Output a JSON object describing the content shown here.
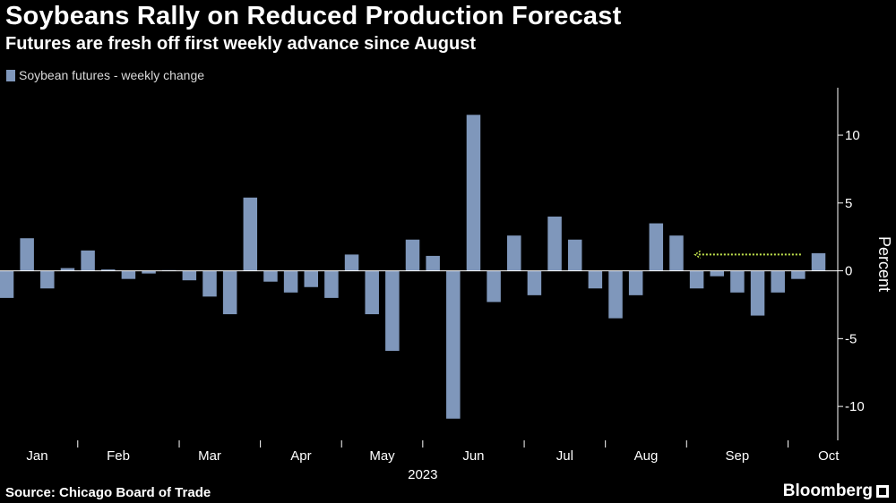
{
  "title": "Soybeans Rally on Reduced Production Forecast",
  "subtitle": "Futures are fresh off first weekly advance since August",
  "source": "Source: Chicago Board of Trade",
  "brand": "Bloomberg",
  "colors": {
    "bar": "#7f97bb",
    "arrow": "#c5e84f",
    "background": "#000000",
    "axis": "#ffffff"
  },
  "chart_data": {
    "type": "bar",
    "legend": [
      "Soybean futures - weekly change"
    ],
    "legend_position": "top-left",
    "ylabel": "Percent",
    "ylim": [
      -12.5,
      13.5
    ],
    "yticks": [
      10,
      5,
      0,
      -5,
      -10
    ],
    "ytick_labels": [
      "10",
      "5",
      "0",
      "-5",
      "-10"
    ],
    "grid": false,
    "year_label": "2023",
    "month_labels": [
      {
        "label": "Jan",
        "week": 1.5
      },
      {
        "label": "Feb",
        "week": 5.5
      },
      {
        "label": "Mar",
        "week": 10
      },
      {
        "label": "Apr",
        "week": 14.5
      },
      {
        "label": "May",
        "week": 18.5
      },
      {
        "label": "Jun",
        "week": 23
      },
      {
        "label": "Jul",
        "week": 27.5
      },
      {
        "label": "Aug",
        "week": 31.5
      },
      {
        "label": "Sep",
        "week": 36
      },
      {
        "label": "Oct",
        "week": 40.5
      }
    ],
    "series": [
      {
        "name": "Soybean futures - weekly change",
        "values": [
          -2.0,
          2.4,
          -1.3,
          0.2,
          1.5,
          0.1,
          -0.6,
          -0.2,
          0.05,
          -0.7,
          -1.9,
          -3.2,
          5.4,
          -0.8,
          -1.6,
          -1.2,
          -2.0,
          1.2,
          -3.2,
          -5.9,
          2.3,
          1.1,
          -10.9,
          11.5,
          -2.3,
          2.6,
          -1.8,
          4.0,
          2.3,
          -1.3,
          -3.5,
          -1.8,
          3.5,
          2.6,
          -1.3,
          -0.4,
          -1.6,
          -3.3,
          -1.6,
          -0.6,
          1.3
        ]
      }
    ],
    "annotation": {
      "type": "dotted-arrow",
      "value": 1.2,
      "from_week": 39,
      "to_week": 34
    }
  }
}
